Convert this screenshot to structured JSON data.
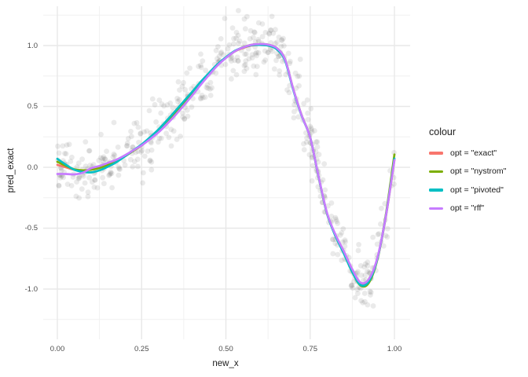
{
  "chart_data": {
    "type": "scatter+line",
    "title": "",
    "xlabel": "new_x",
    "ylabel": "pred_exact",
    "xlim": [
      -0.042,
      1.047
    ],
    "ylim": [
      -1.413,
      1.323
    ],
    "grid": true,
    "x_ticks": {
      "major": [
        0,
        0.25,
        0.5,
        0.75,
        1.0
      ],
      "labels": [
        "0.00",
        "0.25",
        "0.50",
        "0.75",
        "1.00"
      ],
      "minor": [
        0.125,
        0.375,
        0.625,
        0.875
      ]
    },
    "y_ticks": {
      "major": [
        -1.0,
        -0.5,
        0.0,
        0.5,
        1.0
      ],
      "labels": [
        "-1.0",
        "-0.5",
        "0.0",
        "0.5",
        "1.0"
      ],
      "minor": [
        -1.25,
        -0.75,
        -0.25,
        0.25,
        0.75,
        1.25
      ]
    },
    "x": [
      0.0,
      0.025,
      0.05,
      0.075,
      0.1,
      0.125,
      0.15,
      0.175,
      0.2,
      0.225,
      0.25,
      0.275,
      0.3,
      0.325,
      0.35,
      0.375,
      0.4,
      0.425,
      0.45,
      0.475,
      0.5,
      0.525,
      0.55,
      0.575,
      0.6,
      0.625,
      0.65,
      0.675,
      0.7,
      0.725,
      0.75,
      0.775,
      0.8,
      0.825,
      0.85,
      0.875,
      0.9,
      0.925,
      0.95,
      0.975,
      1.0
    ],
    "series": [
      {
        "name": "opt = \"exact\"",
        "color": "#F8766D",
        "values": [
          0.02,
          0.0,
          -0.02,
          -0.025,
          -0.02,
          -0.005,
          0.02,
          0.05,
          0.09,
          0.135,
          0.18,
          0.235,
          0.295,
          0.365,
          0.44,
          0.52,
          0.6,
          0.685,
          0.765,
          0.84,
          0.9,
          0.95,
          0.98,
          1.0,
          1.005,
          1.0,
          0.975,
          0.886,
          0.64,
          0.425,
          0.245,
          -0.08,
          -0.38,
          -0.56,
          -0.7,
          -0.85,
          -0.96,
          -0.93,
          -0.75,
          -0.4,
          0.06
        ]
      },
      {
        "name": "opt = \"nystrom\"",
        "color": "#7CAE00",
        "values": [
          0.045,
          0.012,
          -0.016,
          -0.025,
          -0.02,
          -0.005,
          0.02,
          0.05,
          0.09,
          0.135,
          0.18,
          0.235,
          0.299,
          0.369,
          0.444,
          0.52,
          0.6,
          0.685,
          0.765,
          0.84,
          0.9,
          0.95,
          0.985,
          1.006,
          1.013,
          1.008,
          0.981,
          0.89,
          0.64,
          0.425,
          0.245,
          -0.08,
          -0.38,
          -0.56,
          -0.706,
          -0.86,
          -0.972,
          -0.945,
          -0.75,
          -0.38,
          0.105
        ]
      },
      {
        "name": "opt = \"pivoted\"",
        "color": "#00BFC4",
        "values": [
          0.07,
          0.022,
          -0.02,
          -0.037,
          -0.042,
          -0.025,
          0.005,
          0.042,
          0.09,
          0.139,
          0.188,
          0.247,
          0.311,
          0.385,
          0.462,
          0.542,
          0.62,
          0.701,
          0.775,
          0.846,
          0.904,
          0.954,
          0.984,
          1.002,
          1.005,
          1.0,
          0.971,
          0.88,
          0.634,
          0.421,
          0.245,
          -0.08,
          -0.38,
          -0.564,
          -0.708,
          -0.86,
          -0.968,
          -0.934,
          -0.746,
          -0.392,
          0.072
        ]
      },
      {
        "name": "opt = \"rff\"",
        "color": "#C77CFF",
        "values": [
          -0.055,
          -0.055,
          -0.058,
          -0.045,
          -0.008,
          0.011,
          0.036,
          0.062,
          0.098,
          0.139,
          0.18,
          0.231,
          0.287,
          0.355,
          0.428,
          0.508,
          0.59,
          0.677,
          0.759,
          0.836,
          0.898,
          0.95,
          0.984,
          1.006,
          1.013,
          1.008,
          0.981,
          0.89,
          0.642,
          0.425,
          0.245,
          -0.076,
          -0.374,
          -0.552,
          -0.69,
          -0.838,
          -0.948,
          -0.915,
          -0.738,
          -0.392,
          0.06
        ]
      }
    ],
    "scatter": {
      "n": 520,
      "noise_sd": 0.125,
      "seed": 12345,
      "x_range": [
        0,
        1
      ],
      "color": "#5a5a5a",
      "alpha": 0.13,
      "radius": 3.4
    },
    "legend": {
      "title": "colour",
      "position": "right",
      "entries": [
        {
          "label": "opt = \"exact\"",
          "color": "#F8766D"
        },
        {
          "label": "opt = \"nystrom\"",
          "color": "#7CAE00"
        },
        {
          "label": "opt = \"pivoted\"",
          "color": "#00BFC4"
        },
        {
          "label": "opt = \"rff\"",
          "color": "#C77CFF"
        }
      ]
    }
  }
}
